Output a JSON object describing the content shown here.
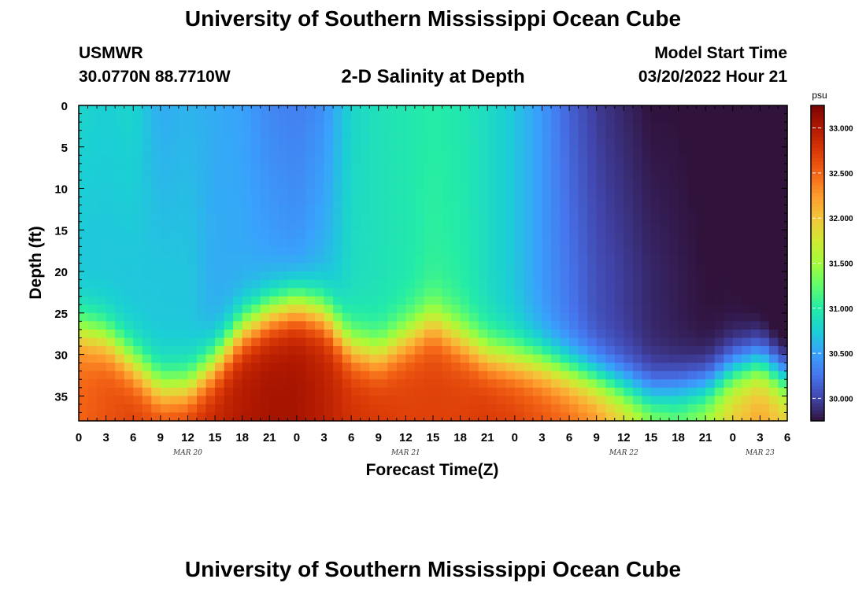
{
  "header": {
    "title": "University of Southern Mississippi Ocean Cube",
    "station_id": "USMWR",
    "coords": "30.0770N  88.7710W",
    "model_start_label": "Model Start Time",
    "model_start_value": "03/20/2022 Hour 21"
  },
  "footer": {
    "title": "University of Southern Mississippi Ocean Cube"
  },
  "chart_data": {
    "type": "heatmap",
    "title": "2-D Salinity at Depth",
    "xlabel": "Forecast Time(Z)",
    "ylabel": "Depth (ft)",
    "x_tick_labels": [
      "0",
      "3",
      "6",
      "9",
      "12",
      "15",
      "18",
      "21",
      "0",
      "3",
      "6",
      "9",
      "12",
      "15",
      "18",
      "21",
      "0",
      "3",
      "6",
      "9",
      "12",
      "15",
      "18",
      "21",
      "0",
      "3",
      "6"
    ],
    "x_range_hours": [
      0,
      78
    ],
    "date_labels": [
      {
        "label": "MAR 20",
        "hour": 12
      },
      {
        "label": "MAR 21",
        "hour": 36
      },
      {
        "label": "MAR 22",
        "hour": 60
      },
      {
        "label": "MAR 23",
        "hour": 75
      }
    ],
    "y_ticks": [
      0,
      5,
      10,
      15,
      20,
      25,
      30,
      35
    ],
    "ylim": [
      0,
      38
    ],
    "y_inverted": true,
    "colorbar": {
      "unit": "psu",
      "ticks": [
        "33.000",
        "32.500",
        "32.000",
        "31.500",
        "31.000",
        "30.500",
        "30.000"
      ],
      "range": [
        29.75,
        33.25
      ],
      "colors": [
        "#30123b",
        "#4145ab",
        "#4675ed",
        "#39a2fc",
        "#1bcfd4",
        "#24eca6",
        "#61fc6c",
        "#a4fc3b",
        "#d1e834",
        "#f3c63a",
        "#fe9b2d",
        "#f36315",
        "#d93806",
        "#b11901",
        "#7a0402"
      ]
    },
    "grid": false,
    "columns": [
      {
        "hour": 0,
        "surface": 30.8,
        "mid": 30.7,
        "interface_depth": 27.0,
        "bottom": 32.5
      },
      {
        "hour": 3,
        "surface": 30.75,
        "mid": 30.7,
        "interface_depth": 28.0,
        "bottom": 32.6
      },
      {
        "hour": 6,
        "surface": 30.8,
        "mid": 30.7,
        "interface_depth": 31.0,
        "bottom": 32.7
      },
      {
        "hour": 9,
        "surface": 30.55,
        "mid": 30.7,
        "interface_depth": 34.0,
        "bottom": 32.7
      },
      {
        "hour": 12,
        "surface": 30.6,
        "mid": 30.7,
        "interface_depth": 34.0,
        "bottom": 32.8
      },
      {
        "hour": 15,
        "surface": 30.55,
        "mid": 30.55,
        "interface_depth": 31.0,
        "bottom": 32.9
      },
      {
        "hour": 18,
        "surface": 30.5,
        "mid": 30.55,
        "interface_depth": 27.0,
        "bottom": 33.0
      },
      {
        "hour": 21,
        "surface": 30.35,
        "mid": 30.5,
        "interface_depth": 25.0,
        "bottom": 33.05
      },
      {
        "hour": 24,
        "surface": 30.3,
        "mid": 30.45,
        "interface_depth": 24.0,
        "bottom": 33.05
      },
      {
        "hour": 27,
        "surface": 30.4,
        "mid": 30.6,
        "interface_depth": 25.0,
        "bottom": 32.95
      },
      {
        "hour": 30,
        "surface": 30.8,
        "mid": 30.85,
        "interface_depth": 29.0,
        "bottom": 32.8
      },
      {
        "hour": 33,
        "surface": 30.9,
        "mid": 30.9,
        "interface_depth": 30.0,
        "bottom": 32.75
      },
      {
        "hour": 36,
        "surface": 30.95,
        "mid": 30.95,
        "interface_depth": 28.0,
        "bottom": 32.7
      },
      {
        "hour": 39,
        "surface": 31.0,
        "mid": 31.05,
        "interface_depth": 26.0,
        "bottom": 32.7
      },
      {
        "hour": 42,
        "surface": 30.95,
        "mid": 31.0,
        "interface_depth": 28.0,
        "bottom": 32.7
      },
      {
        "hour": 45,
        "surface": 30.85,
        "mid": 30.85,
        "interface_depth": 30.0,
        "bottom": 32.75
      },
      {
        "hour": 48,
        "surface": 30.7,
        "mid": 30.7,
        "interface_depth": 30.5,
        "bottom": 32.7
      },
      {
        "hour": 51,
        "surface": 30.45,
        "mid": 30.45,
        "interface_depth": 31.0,
        "bottom": 32.6
      },
      {
        "hour": 54,
        "surface": 30.15,
        "mid": 30.25,
        "interface_depth": 32.0,
        "bottom": 32.5
      },
      {
        "hour": 57,
        "surface": 29.95,
        "mid": 30.05,
        "interface_depth": 33.0,
        "bottom": 32.35
      },
      {
        "hour": 60,
        "surface": 29.85,
        "mid": 29.95,
        "interface_depth": 34.0,
        "bottom": 32.0
      },
      {
        "hour": 63,
        "surface": 29.75,
        "mid": 29.85,
        "interface_depth": 35.0,
        "bottom": 31.6
      },
      {
        "hour": 66,
        "surface": 29.75,
        "mid": 29.8,
        "interface_depth": 34.5,
        "bottom": 31.4
      },
      {
        "hour": 69,
        "surface": 29.7,
        "mid": 29.75,
        "interface_depth": 34.0,
        "bottom": 31.6
      },
      {
        "hour": 72,
        "surface": 29.65,
        "mid": 29.75,
        "interface_depth": 32.0,
        "bottom": 32.0
      },
      {
        "hour": 75,
        "surface": 29.55,
        "mid": 29.7,
        "interface_depth": 31.0,
        "bottom": 32.2
      },
      {
        "hour": 78,
        "surface": 29.5,
        "mid": 29.6,
        "interface_depth": 33.0,
        "bottom": 32.0
      }
    ]
  }
}
